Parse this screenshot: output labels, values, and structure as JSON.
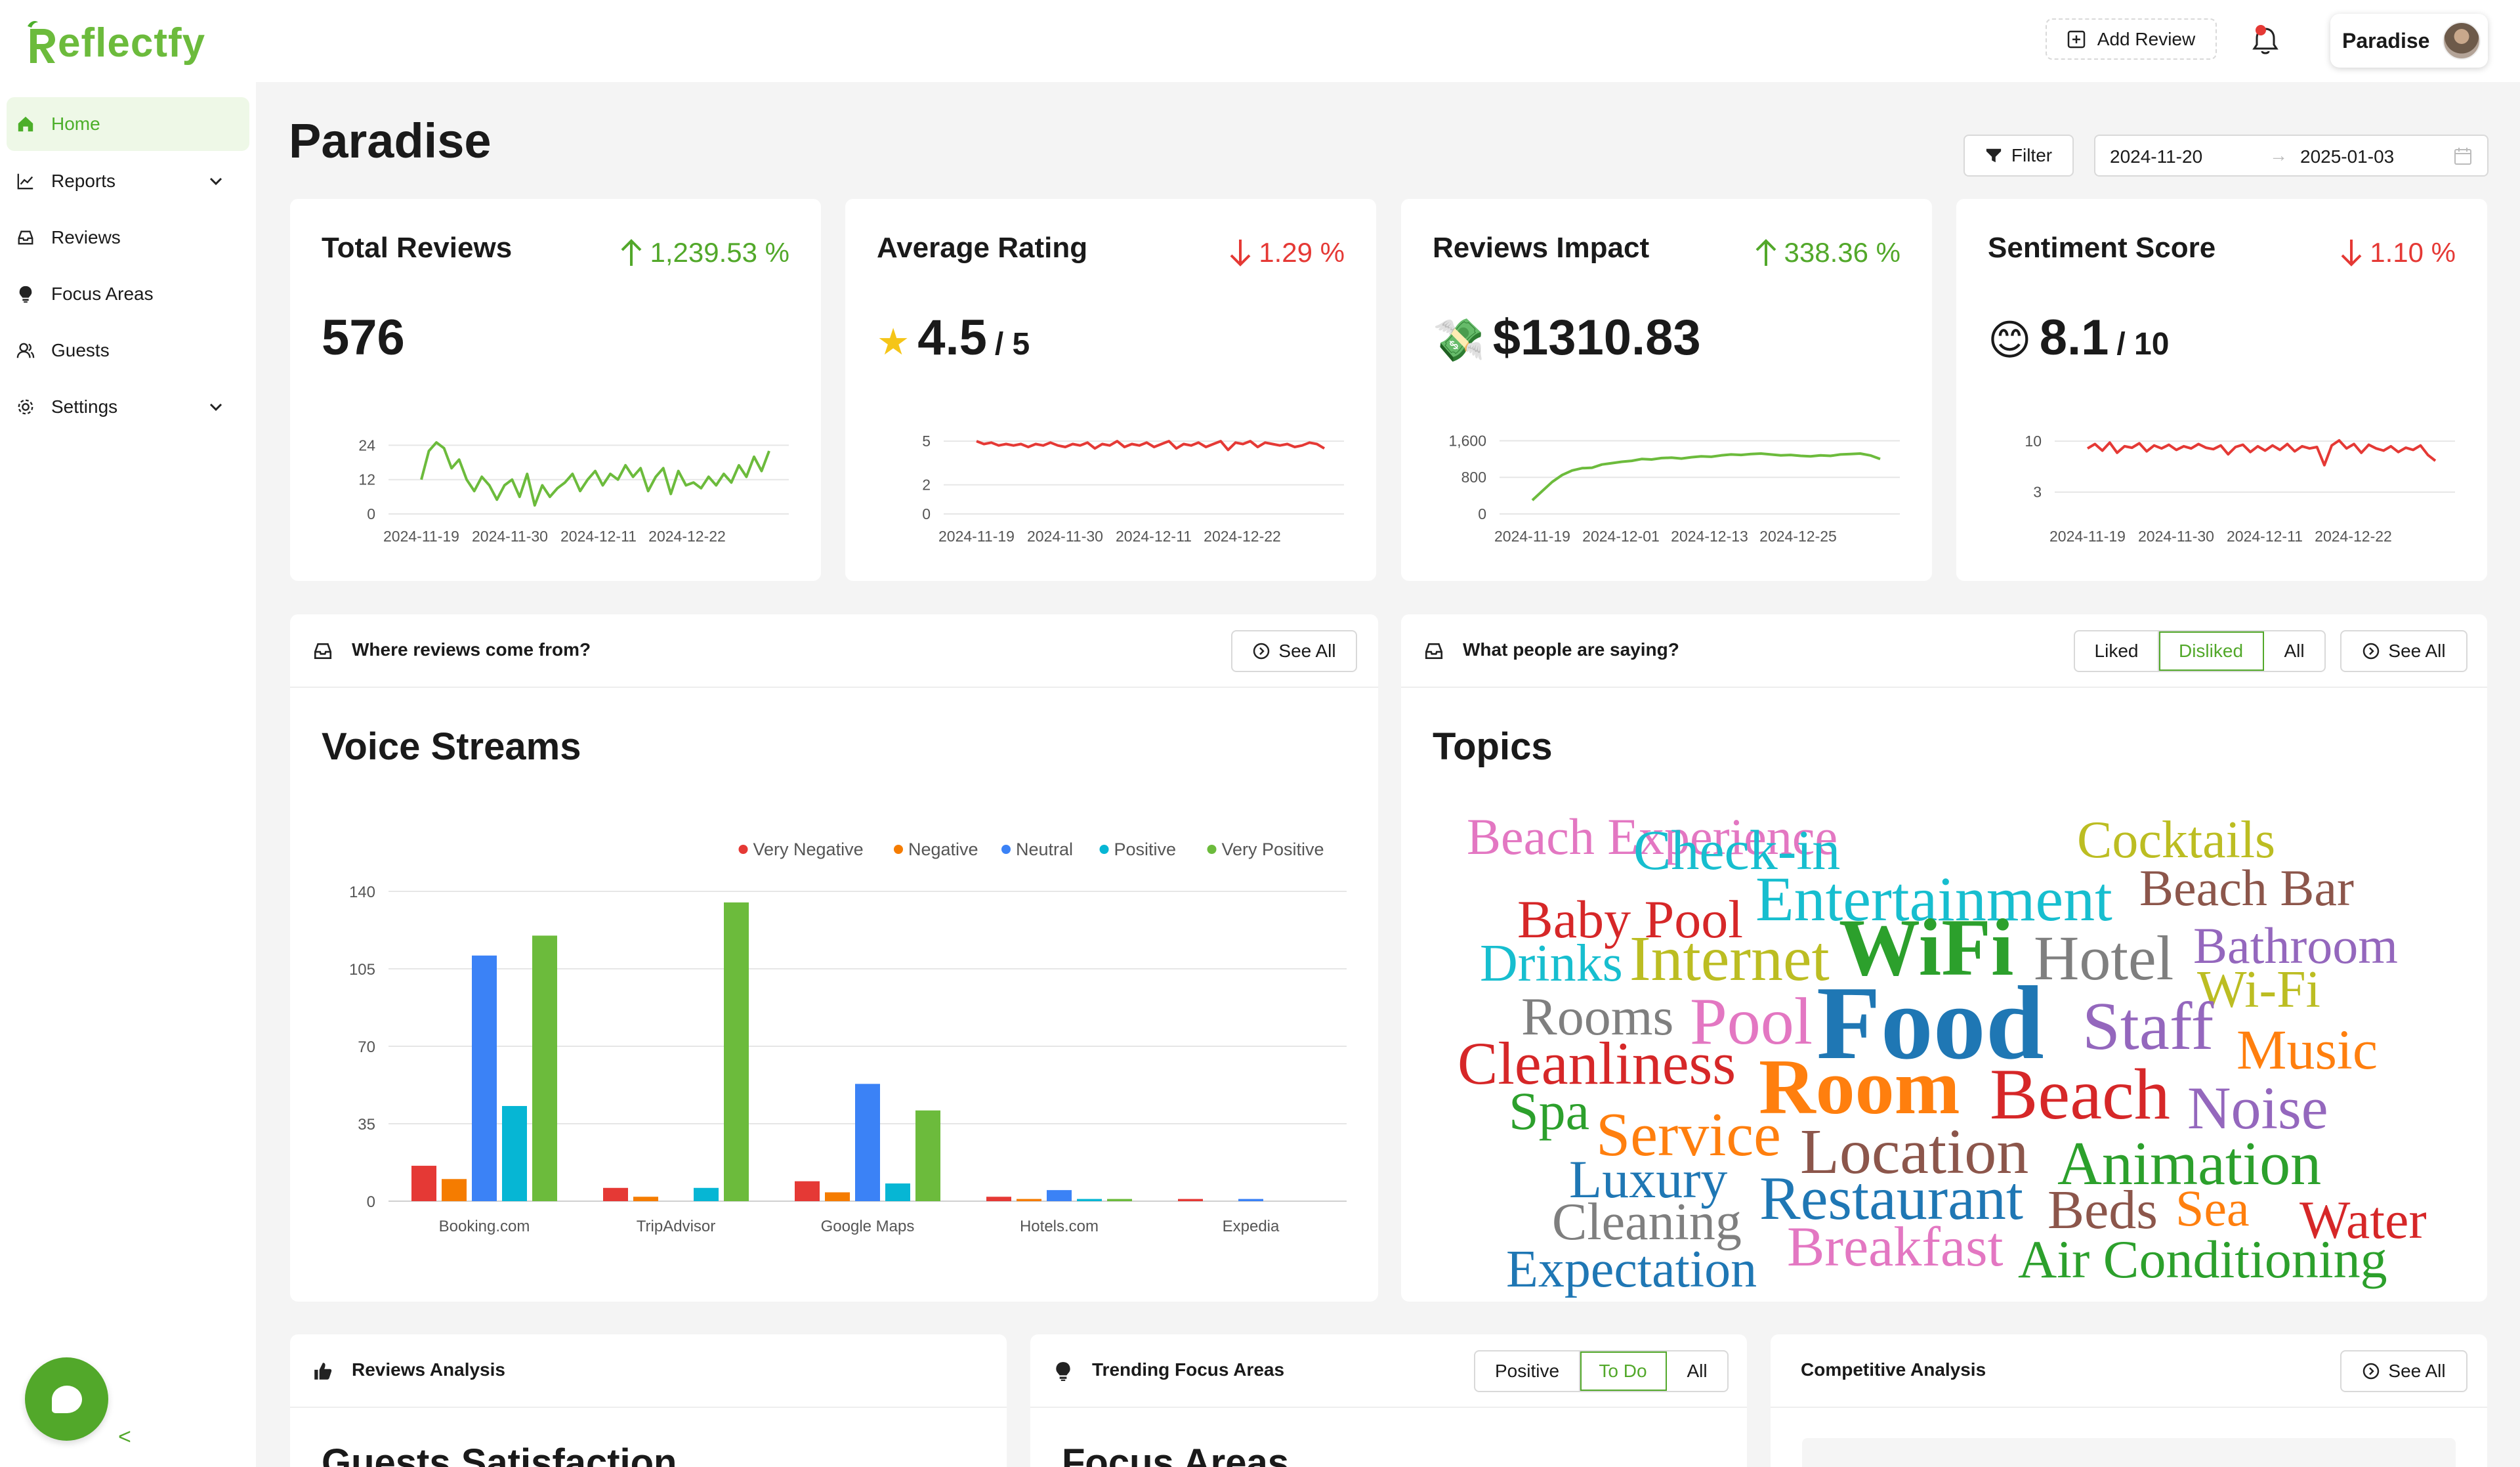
{
  "app": {
    "logo_text": "eflectfy",
    "logo_mark": "R"
  },
  "header": {
    "add_review_label": "Add Review",
    "account_name": "Paradise"
  },
  "sidebar": {
    "items": [
      {
        "label": "Home",
        "icon": "home-icon"
      },
      {
        "label": "Reports",
        "icon": "line-chart-icon"
      },
      {
        "label": "Reviews",
        "icon": "inbox-icon"
      },
      {
        "label": "Focus Areas",
        "icon": "bulb-icon"
      },
      {
        "label": "Guests",
        "icon": "users-icon"
      },
      {
        "label": "Settings",
        "icon": "gear-icon"
      }
    ],
    "collapse_label": "<"
  },
  "page": {
    "title": "Paradise"
  },
  "filters": {
    "filter_label": "Filter",
    "date_from": "2024-11-20",
    "date_to": "2025-01-03",
    "arrow": "→"
  },
  "kpis": [
    {
      "title": "Total Reviews",
      "change": "1,239.53 %",
      "direction": "up",
      "value": "576",
      "suffix": "",
      "emoji": ""
    },
    {
      "title": "Average Rating",
      "change": "1.29 %",
      "direction": "down",
      "value": "4.5",
      "suffix": "/ 5",
      "emoji": "★"
    },
    {
      "title": "Reviews Impact",
      "change": "338.36 %",
      "direction": "up",
      "value": "$1310.83",
      "suffix": "",
      "emoji": "💸"
    },
    {
      "title": "Sentiment Score",
      "change": "1.10 %",
      "direction": "down",
      "value": "8.1",
      "suffix": "/ 10",
      "emoji": "😊"
    }
  ],
  "voice": {
    "header": "Where reviews come from?",
    "see_all": "See All",
    "title": "Voice Streams"
  },
  "topics": {
    "header": "What people are saying?",
    "tabs": [
      "Liked",
      "Disliked",
      "All"
    ],
    "selected_tab": "Disliked",
    "see_all": "See All",
    "title": "Topics"
  },
  "bottom": {
    "reviews_analysis": {
      "header": "Reviews Analysis",
      "title": "Guests Satisfaction"
    },
    "trending": {
      "header": "Trending Focus Areas",
      "tabs": [
        "Positive",
        "To Do",
        "All"
      ],
      "selected_tab": "To Do",
      "title": "Focus Areas"
    },
    "competitive": {
      "header": "Competitive Analysis",
      "see_all": "See All"
    }
  },
  "colors": {
    "accent": "#52a82a",
    "up": "#52a82a",
    "down": "#e53935"
  },
  "chart_data": [
    {
      "type": "line",
      "title": "Total Reviews",
      "x_ticks": [
        "2024-11-19",
        "2024-11-30",
        "2024-12-11",
        "2024-12-22"
      ],
      "y_ticks": [
        0,
        12,
        24
      ],
      "ylim": [
        0,
        28
      ],
      "color": "#6cbb3c",
      "values": [
        12,
        22,
        25,
        23,
        16,
        19,
        12,
        8,
        13,
        10,
        5,
        10,
        12,
        6,
        14,
        3,
        10,
        6,
        9,
        11,
        14,
        8,
        12,
        15,
        10,
        14,
        12,
        17,
        13,
        16,
        8,
        13,
        16,
        7,
        15,
        10,
        11,
        9,
        13,
        10,
        14,
        11,
        17,
        13,
        20,
        15,
        22
      ]
    },
    {
      "type": "line",
      "title": "Average Rating",
      "x_ticks": [
        "2024-11-19",
        "2024-11-30",
        "2024-12-11",
        "2024-12-22"
      ],
      "y_ticks": [
        0,
        2,
        5
      ],
      "ylim": [
        0,
        5.5
      ],
      "color": "#e53935",
      "values": [
        5,
        4.8,
        4.9,
        4.7,
        4.8,
        4.7,
        4.8,
        4.6,
        4.8,
        4.7,
        4.9,
        4.7,
        4.6,
        4.8,
        4.7,
        4.9,
        4.5,
        4.8,
        4.7,
        5,
        4.6,
        4.8,
        4.7,
        4.9,
        4.6,
        4.8,
        5,
        4.5,
        4.8,
        4.7,
        4.9,
        4.6,
        4.8,
        5,
        4.4,
        4.9,
        4.8,
        5,
        4.6,
        4.9,
        4.8,
        4.7,
        4.8,
        4.6,
        4.7,
        4.9,
        4.8,
        4.5
      ]
    },
    {
      "type": "line",
      "title": "Reviews Impact",
      "x_ticks": [
        "2024-11-19",
        "2024-12-01",
        "2024-12-13",
        "2024-12-25"
      ],
      "y_ticks": [
        0,
        800,
        1600
      ],
      "ylim": [
        0,
        1750
      ],
      "color": "#6cbb3c",
      "values": [
        300,
        500,
        700,
        850,
        950,
        1000,
        1010,
        1080,
        1110,
        1140,
        1160,
        1200,
        1190,
        1220,
        1230,
        1210,
        1240,
        1260,
        1250,
        1280,
        1300,
        1290,
        1310,
        1320,
        1300,
        1280,
        1290,
        1270,
        1260,
        1280,
        1270,
        1300,
        1310,
        1320,
        1280,
        1200
      ]
    },
    {
      "type": "line",
      "title": "Sentiment Score",
      "x_ticks": [
        "2024-11-19",
        "2024-11-30",
        "2024-12-11",
        "2024-12-22"
      ],
      "y_ticks": [
        3,
        10
      ],
      "ylim": [
        0,
        11
      ],
      "color": "#e53935",
      "values": [
        9,
        9.6,
        8.7,
        9.8,
        8.4,
        9.3,
        9.1,
        9.7,
        8.6,
        9.4,
        9,
        9.5,
        8.8,
        9.3,
        9,
        9.6,
        9.1,
        8.9,
        9.4,
        8.2,
        9.2,
        9.5,
        8.5,
        9.3,
        8.7,
        9.4,
        8.8,
        9.6,
        8.6,
        9.3,
        9,
        9.2,
        6.7,
        9.4,
        10.1,
        9,
        9.6,
        8.4,
        9.5,
        9,
        8.7,
        9.3,
        8.5,
        9.1,
        8.8,
        9.4,
        8.1,
        7.3
      ]
    },
    {
      "type": "bar",
      "title": "Voice Streams",
      "categories": [
        "Booking.com",
        "TripAdvisor",
        "Google Maps",
        "Hotels.com",
        "Expedia"
      ],
      "y_ticks": [
        0,
        35,
        70,
        105,
        140
      ],
      "ylim": [
        0,
        140
      ],
      "series": [
        {
          "name": "Very Negative",
          "color": "#e53935",
          "values": [
            16,
            6,
            9,
            2,
            1
          ]
        },
        {
          "name": "Negative",
          "color": "#f57c00",
          "values": [
            10,
            2,
            4,
            1,
            0
          ]
        },
        {
          "name": "Neutral",
          "color": "#3b82f6",
          "values": [
            111,
            0,
            53,
            5,
            1
          ]
        },
        {
          "name": "Positive",
          "color": "#06b6d4",
          "values": [
            43,
            6,
            8,
            1,
            0
          ]
        },
        {
          "name": "Very Positive",
          "color": "#6cbb3c",
          "values": [
            120,
            135,
            41,
            1,
            0
          ]
        }
      ]
    }
  ],
  "word_cloud": [
    {
      "word": "Beach Experience",
      "color": "#e377c2"
    },
    {
      "word": "Check-in",
      "color": "#17becf"
    },
    {
      "word": "Cocktails",
      "color": "#bcbd22"
    },
    {
      "word": "Baby Pool",
      "color": "#d62728"
    },
    {
      "word": "Entertainment",
      "color": "#17becf"
    },
    {
      "word": "Beach Bar",
      "color": "#8c564b"
    },
    {
      "word": "Drinks",
      "color": "#17becf"
    },
    {
      "word": "Internet",
      "color": "#bcbd22"
    },
    {
      "word": "WiFi",
      "color": "#2ca02c"
    },
    {
      "word": "Hotel",
      "color": "#7f7f7f"
    },
    {
      "word": "Bathroom",
      "color": "#9467bd"
    },
    {
      "word": "Wi-Fi",
      "color": "#bcbd22"
    },
    {
      "word": "Rooms",
      "color": "#7f7f7f"
    },
    {
      "word": "Pool",
      "color": "#e377c2"
    },
    {
      "word": "Food",
      "color": "#1f77b4"
    },
    {
      "word": "Staff",
      "color": "#9467bd"
    },
    {
      "word": "Music",
      "color": "#ff7f0e"
    },
    {
      "word": "Cleanliness",
      "color": "#d62728"
    },
    {
      "word": "Room",
      "color": "#ff7f0e"
    },
    {
      "word": "Beach",
      "color": "#d62728"
    },
    {
      "word": "Noise",
      "color": "#9467bd"
    },
    {
      "word": "Spa",
      "color": "#2ca02c"
    },
    {
      "word": "Service",
      "color": "#ff7f0e"
    },
    {
      "word": "Location",
      "color": "#8c564b"
    },
    {
      "word": "Animation",
      "color": "#2ca02c"
    },
    {
      "word": "Luxury",
      "color": "#1f77b4"
    },
    {
      "word": "Restaurant",
      "color": "#1f77b4"
    },
    {
      "word": "Beds",
      "color": "#8c564b"
    },
    {
      "word": "Sea",
      "color": "#ff7f0e"
    },
    {
      "word": "Water",
      "color": "#d62728"
    },
    {
      "word": "Cleaning",
      "color": "#7f7f7f"
    },
    {
      "word": "Breakfast",
      "color": "#e377c2"
    },
    {
      "word": "Air Conditioning",
      "color": "#2ca02c"
    },
    {
      "word": "Expectation",
      "color": "#1f77b4"
    }
  ]
}
